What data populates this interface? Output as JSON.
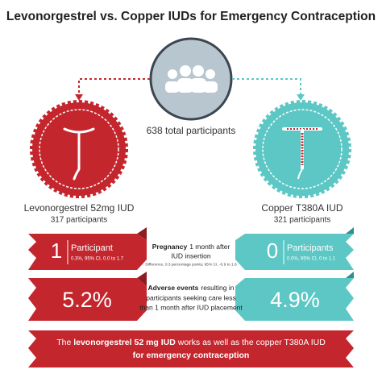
{
  "header": {
    "title": "Levonorgestrel vs. Copper IUDs for Emergency Contraception"
  },
  "center": {
    "participants": "638 total participants"
  },
  "left": {
    "name": "Levonorgestrel 52mg IUD",
    "participants": "317 participants"
  },
  "right": {
    "name": "Copper T380A IUD",
    "participants": "321 participants"
  },
  "pregnancy": {
    "left": {
      "count": "1",
      "unit": "Participant",
      "ci": "0.3%, 95% CI, 0.0 to 1.7"
    },
    "right": {
      "count": "0",
      "unit": "Participants",
      "ci": "0.0%, 95% CI, 0 to 1.1"
    },
    "label_bold": "Pregnancy",
    "label_rest": "1 month after",
    "label_line2": "IUD insertion",
    "difference": "Difference, 0.3 percentage points; 95% CI, -0.9 to 1.6"
  },
  "adverse": {
    "left": "5.2%",
    "right": "4.9%",
    "lines": [
      "resulting in",
      "participants seeking care less",
      "than 1 month after IUD placement"
    ],
    "label_bold": "Adverse events"
  },
  "conclusion": {
    "parts": [
      "The ",
      "levonorgestrel 52 mg IUD",
      " works as well as the copper T380A IUD"
    ],
    "line2": "for emergency contraception"
  }
}
